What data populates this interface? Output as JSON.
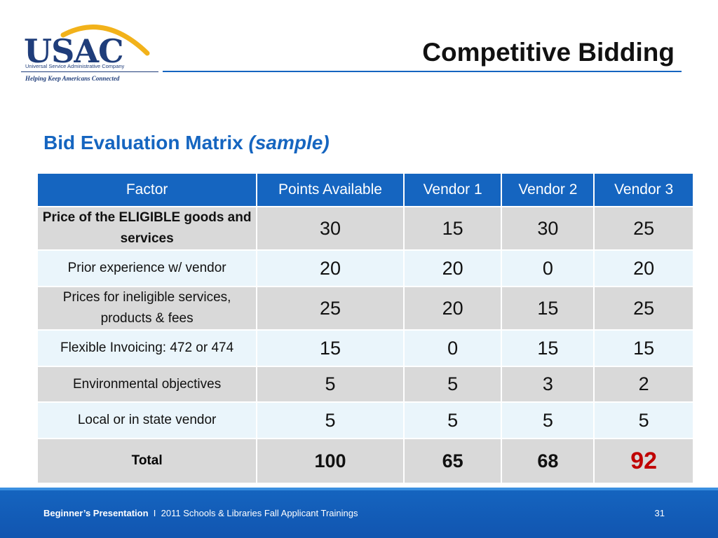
{
  "logo": {
    "text": "USAC",
    "subtitle": "Universal Service Administrative Company",
    "tagline": "Helping Keep Americans Connected"
  },
  "header": {
    "title": "Competitive Bidding"
  },
  "section": {
    "title": "Bid Evaluation Matrix",
    "title_em": "(sample)"
  },
  "table": {
    "columns": [
      "Factor",
      "Points Available",
      "Vendor 1",
      "Vendor 2",
      "Vendor 3"
    ],
    "rows": [
      {
        "factor": "Price of the ELIGIBLE goods and services",
        "values": [
          "30",
          "15",
          "30",
          "25"
        ]
      },
      {
        "factor": "Prior experience w/ vendor",
        "values": [
          "20",
          "20",
          "0",
          "20"
        ]
      },
      {
        "factor": "Prices for ineligible services, products & fees",
        "values": [
          "25",
          "20",
          "15",
          "25"
        ]
      },
      {
        "factor": "Flexible Invoicing: 472 or 474",
        "values": [
          "15",
          "0",
          "15",
          "15"
        ]
      },
      {
        "factor": "Environmental objectives",
        "values": [
          "5",
          "5",
          "3",
          "2"
        ]
      },
      {
        "factor": "Local or in state vendor",
        "values": [
          "5",
          "5",
          "5",
          "5"
        ]
      }
    ],
    "total": {
      "label": "Total",
      "values": [
        "100",
        "65",
        "68",
        "92"
      ]
    }
  },
  "footer": {
    "presentation": "Beginner’s Presentation",
    "separator": "I",
    "event": "2011 Schools & Libraries Fall Applicant Trainings",
    "page": "31"
  },
  "colors": {
    "accent": "#1565c0",
    "highlight": "#c00000",
    "logo": "#1f3d7a",
    "arc": "#f2b21a"
  }
}
